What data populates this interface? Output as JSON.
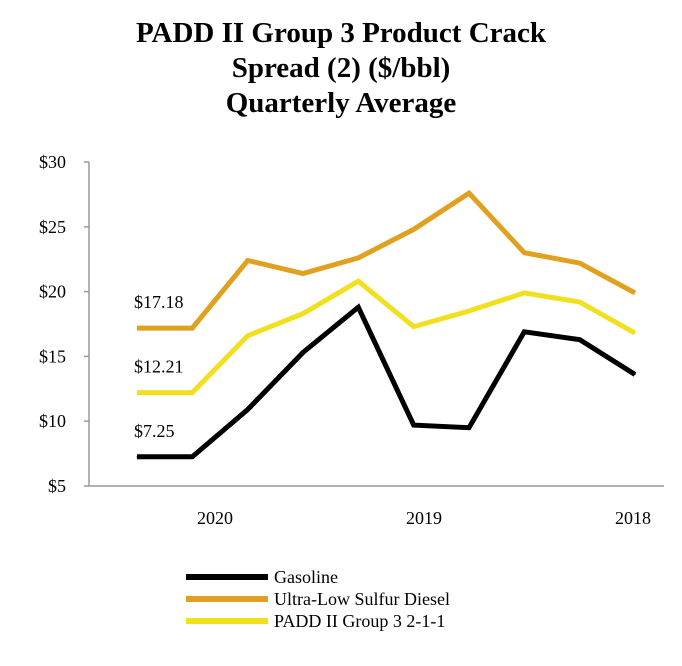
{
  "colors": {
    "gasoline": "#000000",
    "diesel": "#e0a020",
    "padd": "#f0e020",
    "axis": "#999999"
  },
  "chart_data": {
    "type": "line",
    "title_lines": [
      "PADD II Group 3 Product Crack",
      "Spread (2) ($/bbl)",
      "Quarterly Average"
    ],
    "xlabel": "",
    "ylabel": "",
    "ylim": [
      5,
      30
    ],
    "yticks": [
      5,
      10,
      15,
      20,
      25,
      30
    ],
    "ytick_labels": [
      "$5",
      "$10",
      "$15",
      "$20",
      "$25",
      "$30"
    ],
    "x_labels": [
      "2020",
      "2019",
      "2018"
    ],
    "grid": false,
    "legend_position": "bottom",
    "series": [
      {
        "name": "Gasoline",
        "color_key": "gasoline",
        "start_label": "$7.25",
        "values": [
          7.25,
          7.25,
          10.9,
          15.3,
          18.8,
          9.7,
          9.5,
          16.9,
          16.3,
          13.6
        ]
      },
      {
        "name": "Ultra-Low Sulfur Diesel",
        "color_key": "diesel",
        "start_label": "$17.18",
        "values": [
          17.18,
          17.18,
          22.4,
          21.4,
          22.6,
          24.8,
          27.6,
          23.0,
          22.2,
          19.9
        ]
      },
      {
        "name": "PADD II Group 3 2-1-1",
        "color_key": "padd",
        "start_label": "$12.21",
        "values": [
          12.21,
          12.21,
          16.6,
          18.3,
          20.8,
          17.3,
          18.5,
          19.9,
          19.2,
          16.8
        ]
      }
    ]
  }
}
